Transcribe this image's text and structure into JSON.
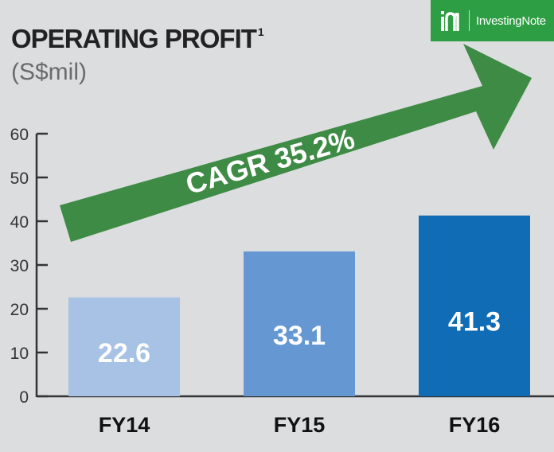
{
  "title": "OPERATING PROFIT",
  "title_footnote": "1",
  "subtitle": "(S$mil)",
  "logo": {
    "text": "InvestingNote",
    "bg_color": "#2e9e45"
  },
  "arrow": {
    "label": "CAGR 35.2%",
    "color": "#3e8b45"
  },
  "chart_data": {
    "type": "bar",
    "categories": [
      "FY14",
      "FY15",
      "FY16"
    ],
    "values": [
      22.6,
      33.1,
      41.3
    ],
    "data_labels": [
      "22.6",
      "33.1",
      "41.3"
    ],
    "bar_colors": [
      "#a7c2e5",
      "#6598d3",
      "#0f6cb5"
    ],
    "yticks": [
      0,
      10,
      20,
      30,
      40,
      50,
      60
    ],
    "ylim": [
      0,
      60
    ],
    "grid": false,
    "legend": "none"
  }
}
